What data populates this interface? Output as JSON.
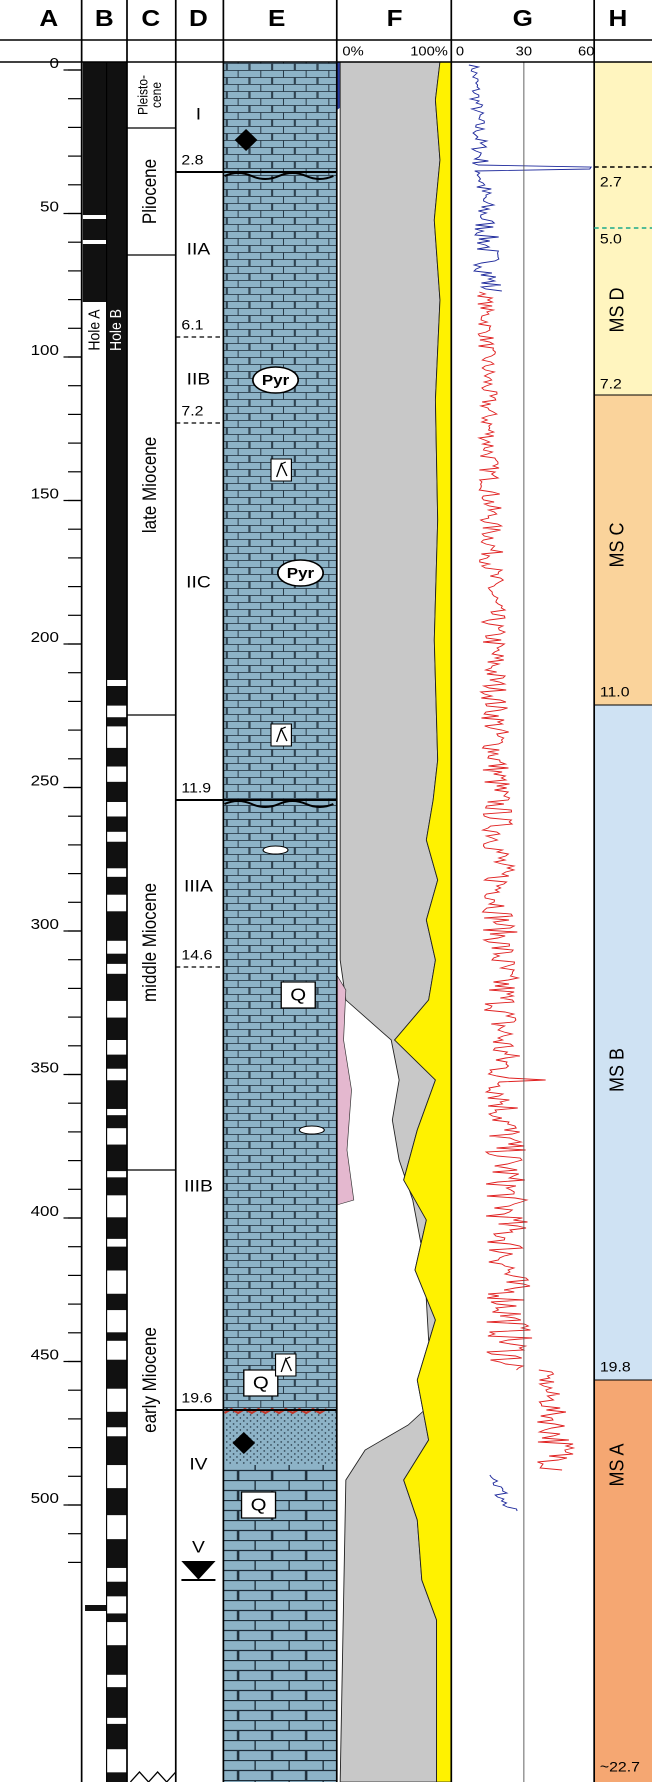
{
  "column_headers": [
    "A",
    "B",
    "C",
    "D",
    "E",
    "F",
    "G",
    "H"
  ],
  "depth_ticks": [
    0,
    50,
    100,
    150,
    200,
    250,
    300,
    350,
    400,
    450,
    500
  ],
  "hole_labels": [
    "Hole A",
    "Hole B"
  ],
  "epochs": [
    {
      "lines": [
        "Pleisto-",
        "cene"
      ]
    },
    {
      "lines": [
        "Pliocene"
      ]
    },
    {
      "lines": [
        "late Miocene"
      ]
    },
    {
      "lines": [
        "middle Miocene"
      ]
    },
    {
      "lines": [
        "early Miocene"
      ]
    }
  ],
  "units": [
    "I",
    "IIA",
    "IIB",
    "IIC",
    "IIIA",
    "IIIB",
    "IV",
    "V"
  ],
  "unit_boundary_ages": [
    2.8,
    6.1,
    7.2,
    11.9,
    14.6,
    19.6
  ],
  "f_scale": [
    "0%",
    "100%"
  ],
  "g_scale": [
    0,
    30,
    60
  ],
  "ms_zones": [
    "MS D",
    "MS C",
    "MS B",
    "MS A"
  ],
  "ms_boundary_ages": [
    "2.7",
    "5.0",
    "7.2",
    "11.0",
    "19.8",
    "~22.7"
  ],
  "lithology_symbols": [
    "Pyr",
    "Pyr",
    "Q",
    "Q",
    "Q"
  ]
}
